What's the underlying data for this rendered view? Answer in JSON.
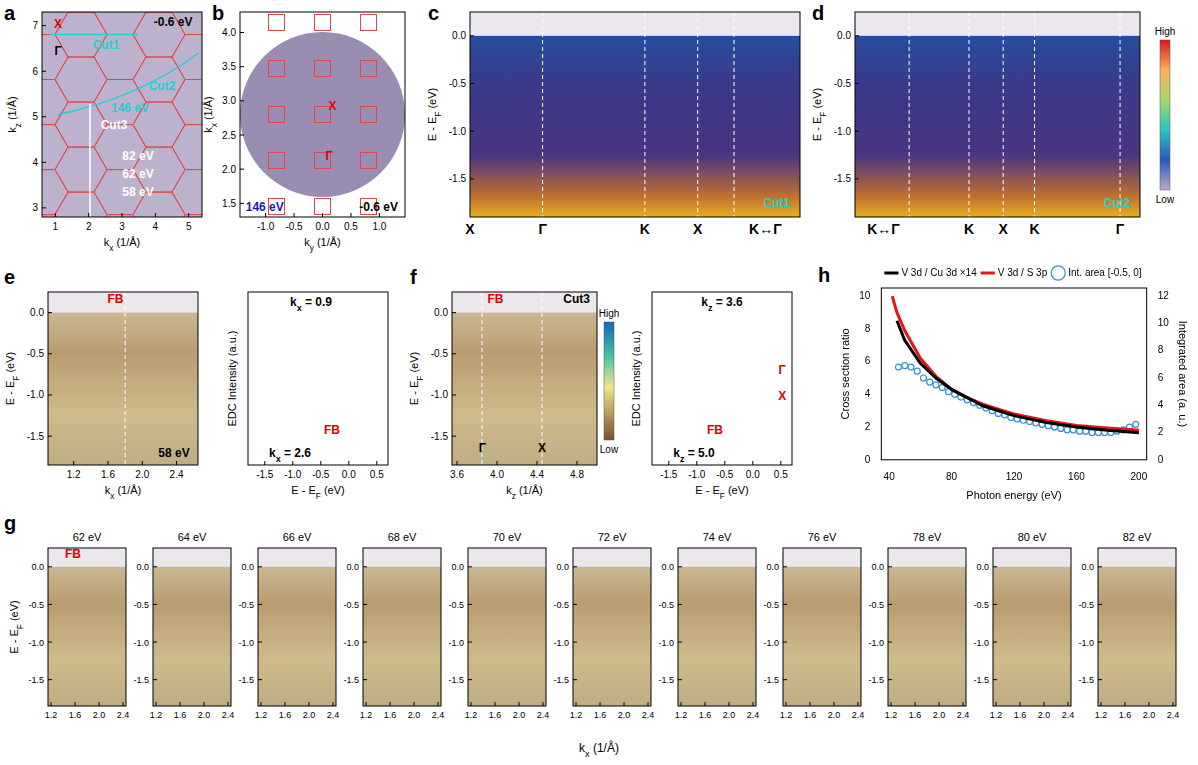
{
  "figure": {
    "a": {
      "letter": "a",
      "xlabel": "kx (1/Å)",
      "ylabel": "kz (1/Å)",
      "xlim": [
        0.6,
        5.4
      ],
      "xticks": [
        1,
        2,
        3,
        4,
        5
      ],
      "ylim": [
        2.8,
        7.3
      ],
      "yticks": [
        3,
        4,
        5,
        6,
        7
      ],
      "annotations": [
        {
          "text": "-0.6 eV",
          "color": "#000000"
        },
        {
          "text": "X",
          "color": "#e00000"
        },
        {
          "text": "Γ",
          "color": "#000000"
        },
        {
          "text": "Cut1",
          "color": "#20d0d0"
        },
        {
          "text": "Cut2",
          "color": "#20d0d0"
        },
        {
          "text": "Cut3",
          "color": "#ffffff"
        },
        {
          "text": "146 eV",
          "color": "#20d0d0"
        },
        {
          "text": "82 eV",
          "color": "#ffffff"
        },
        {
          "text": "62 eV",
          "color": "#ffffff"
        },
        {
          "text": "58 eV",
          "color": "#ffffff"
        }
      ]
    },
    "b": {
      "letter": "b",
      "xlabel": "ky (1/Å)",
      "ylabel": "kx (1/Å)",
      "xlim": [
        -1.45,
        1.45
      ],
      "xticks": [
        {
          "value": -1,
          "label": "-1.0"
        },
        -0.5,
        {
          "value": 0,
          "label": "0.0"
        },
        0.5,
        {
          "value": 1,
          "label": "1.0"
        }
      ],
      "ylim": [
        1.3,
        4.3
      ],
      "yticks": [
        1.5,
        {
          "value": 2,
          "label": "2.0"
        },
        2.5,
        {
          "value": 3,
          "label": "3.0"
        },
        3.5,
        {
          "value": 4,
          "label": "4.0"
        }
      ],
      "annotations": [
        {
          "text": "X",
          "color": "#e00000"
        },
        {
          "text": "Γ",
          "color": "#e00000"
        },
        {
          "text": "146 eV",
          "color": "#1a1aa0"
        },
        {
          "text": "-0.6 eV",
          "color": "#000000"
        }
      ]
    },
    "c": {
      "letter": "c",
      "ylabel": "E - EF (eV)",
      "xlim": [
        0,
        1
      ],
      "xticks": [
        {
          "value": 0,
          "label": "X"
        },
        {
          "value": 0.22,
          "label": "Γ"
        },
        {
          "value": 0.53,
          "label": "K"
        },
        {
          "value": 0.69,
          "label": "X"
        },
        {
          "value": 0.895,
          "label": "K↔Γ"
        }
      ],
      "vlines": [
        0.22,
        0.53,
        0.69,
        0.8
      ],
      "ylim": [
        -1.9,
        0.25
      ],
      "yticks": [
        -1.5,
        {
          "value": -1,
          "label": "-1.0"
        },
        -0.5,
        {
          "value": 0,
          "label": "0.0"
        }
      ],
      "annotations": [
        {
          "text": "Cut1",
          "color": "#20d0d0"
        }
      ]
    },
    "d": {
      "letter": "d",
      "ylabel": "E - EF (eV)",
      "xlim": [
        0,
        1
      ],
      "xticks": [
        {
          "value": 0.1,
          "label": "K↔Γ"
        },
        {
          "value": 0.4,
          "label": "K"
        },
        {
          "value": 0.52,
          "label": "X"
        },
        {
          "value": 0.63,
          "label": "K"
        },
        {
          "value": 0.93,
          "label": "Γ"
        }
      ],
      "vlines": [
        0.19,
        0.4,
        0.52,
        0.63,
        0.93
      ],
      "ylim": [
        -1.9,
        0.25
      ],
      "yticks": [
        -1.5,
        {
          "value": -1,
          "label": "-1.0"
        },
        -0.5,
        {
          "value": 0,
          "label": "0.0"
        }
      ],
      "annotations": [
        {
          "text": "Cut2",
          "color": "#20d0d0"
        }
      ],
      "colorbar": {
        "high": "High",
        "low": "Low"
      }
    },
    "e": {
      "letter": "e",
      "image": {
        "xlabel": "kx (1/Å)",
        "ylabel": "E - EF (eV)",
        "xlim": [
          0.9,
          2.65
        ],
        "xticks": [
          1.2,
          1.6,
          {
            "value": 2,
            "label": "2.0"
          },
          2.4
        ],
        "vlines": [
          1.8
        ],
        "ylim": [
          -1.85,
          0.25
        ],
        "yticks": [
          -1.5,
          {
            "value": -1,
            "label": "-1.0"
          },
          -0.5,
          {
            "value": 0,
            "label": "0.0"
          }
        ],
        "annotations": [
          {
            "text": "FB",
            "color": "#e00000"
          },
          {
            "text": "58 eV",
            "color": "#000000"
          }
        ]
      },
      "edc": {
        "xlabel": "E - EF (eV)",
        "ylabel": "EDC Intensity (a.u.)",
        "xlim": [
          -1.8,
          0.7
        ],
        "xticks": [
          -1.5,
          {
            "value": -1,
            "label": "-1.0"
          },
          -0.5,
          {
            "value": 0,
            "label": "0.0"
          },
          0.5
        ],
        "annotations": [
          {
            "text": "kx = 0.9",
            "color": "#000000"
          },
          {
            "text": "kx = 2.6",
            "color": "#000000"
          },
          {
            "text": "FB",
            "color": "#e00000"
          }
        ]
      }
    },
    "f": {
      "letter": "f",
      "image": {
        "xlabel": "kz (1/Å)",
        "ylabel": "E - EF (eV)",
        "xlim": [
          3.55,
          5.0
        ],
        "xticks": [
          3.6,
          {
            "value": 4,
            "label": "4.0"
          },
          4.4,
          4.8
        ],
        "vlines": [
          3.85,
          4.45
        ],
        "ylim": [
          -1.85,
          0.25
        ],
        "yticks": [
          -1.5,
          {
            "value": -1,
            "label": "-1.0"
          },
          -0.5,
          {
            "value": 0,
            "label": "0.0"
          }
        ],
        "annotations": [
          {
            "text": "FB",
            "color": "#e00000"
          },
          {
            "text": "Cut3",
            "color": "#000000"
          },
          {
            "text": "Γ",
            "color": "#000000"
          },
          {
            "text": "X",
            "color": "#000000"
          }
        ]
      },
      "colorbar": {
        "high": "High",
        "low": "Low"
      },
      "edc": {
        "xlabel": "E - EF (eV)",
        "ylabel": "EDC Intensity (a.u.)",
        "xlim": [
          -1.8,
          0.7
        ],
        "xticks": [
          -1.5,
          {
            "value": -1,
            "label": "-1.0"
          },
          -0.5,
          {
            "value": 0,
            "label": "0.0"
          },
          0.5
        ],
        "annotations": [
          {
            "text": "kz = 3.6",
            "color": "#000000"
          },
          {
            "text": "kz = 5.0",
            "color": "#000000"
          },
          {
            "text": "FB",
            "color": "#e00000"
          },
          {
            "text": "Γ",
            "color": "#e00000"
          },
          {
            "text": "X",
            "color": "#e00000"
          }
        ]
      }
    },
    "g": {
      "letter": "g",
      "titles": [
        "62 eV",
        "64 eV",
        "66 eV",
        "68 eV",
        "70 eV",
        "72 eV",
        "74 eV",
        "76 eV",
        "78 eV",
        "80 eV",
        "82 eV"
      ],
      "xlabel": "kx (1/Å)",
      "ylabel": "E - EF (eV)",
      "xlim": [
        1.15,
        2.45
      ],
      "xticks": [
        1.2,
        1.6,
        {
          "value": 2,
          "label": "2.0"
        },
        2.4
      ],
      "ylim": [
        -1.85,
        0.25
      ],
      "yticks": [
        -1.5,
        {
          "value": -1,
          "label": "-1.0"
        },
        -0.5,
        {
          "value": 0,
          "label": "0.0"
        }
      ],
      "annotations": [
        {
          "text": "FB",
          "color": "#e00000"
        }
      ]
    }
  },
  "chart_data": {
    "type": "line",
    "panel_label": "h",
    "x_label": "Photon energy (eV)",
    "y_label": "Cross section ratio",
    "y2_label": "Integrated area (a. u.)",
    "xlim": [
      35,
      205
    ],
    "xticks": [
      40,
      80,
      120,
      160,
      200
    ],
    "ylim": [
      0,
      10.5
    ],
    "yticks": [
      0,
      2,
      4,
      6,
      8,
      10
    ],
    "y2lim": [
      0,
      12.6
    ],
    "y2ticks": [
      0,
      2,
      4,
      6,
      8,
      10,
      12
    ],
    "grid": false,
    "legend": "top",
    "series": [
      {
        "name": "V 3d / Cu 3d ×14",
        "color": "#000000",
        "type": "line",
        "x": [
          45,
          50,
          60,
          70,
          80,
          90,
          100,
          110,
          120,
          140,
          160,
          180,
          200
        ],
        "values": [
          8.5,
          7.3,
          5.9,
          5.0,
          4.3,
          3.8,
          3.3,
          3.0,
          2.7,
          2.3,
          2.0,
          1.8,
          1.65
        ]
      },
      {
        "name": "V 3d / S 3p",
        "color": "#e8141c",
        "type": "line",
        "x": [
          42,
          45,
          50,
          60,
          70,
          80,
          90,
          100,
          110,
          120,
          140,
          160,
          180,
          200
        ],
        "values": [
          10,
          9.0,
          7.9,
          6.2,
          5.1,
          4.3,
          3.8,
          3.4,
          3.1,
          2.8,
          2.4,
          2.1,
          1.95,
          1.8
        ]
      },
      {
        "name": "Int. area [-0.5, 0]",
        "color": "#3a8fd0",
        "type": "scatter",
        "marker": "circle",
        "axis": "y2",
        "x": [
          46,
          50,
          54,
          58,
          62,
          66,
          70,
          74,
          78,
          82,
          86,
          90,
          94,
          98,
          102,
          106,
          110,
          114,
          118,
          122,
          126,
          130,
          134,
          138,
          142,
          146,
          150,
          154,
          158,
          162,
          166,
          170,
          174,
          178,
          182,
          186,
          190,
          194,
          198
        ],
        "values": [
          6.8,
          6.9,
          6.8,
          6.5,
          6.0,
          5.7,
          5.5,
          5.3,
          5.0,
          4.8,
          4.6,
          4.4,
          4.2,
          4.0,
          3.8,
          3.6,
          3.4,
          3.3,
          3.1,
          3.0,
          2.9,
          2.8,
          2.7,
          2.6,
          2.5,
          2.4,
          2.3,
          2.2,
          2.2,
          2.1,
          2.1,
          2.0,
          2.0,
          2.0,
          2.0,
          2.1,
          2.2,
          2.4,
          2.6
        ]
      }
    ]
  }
}
